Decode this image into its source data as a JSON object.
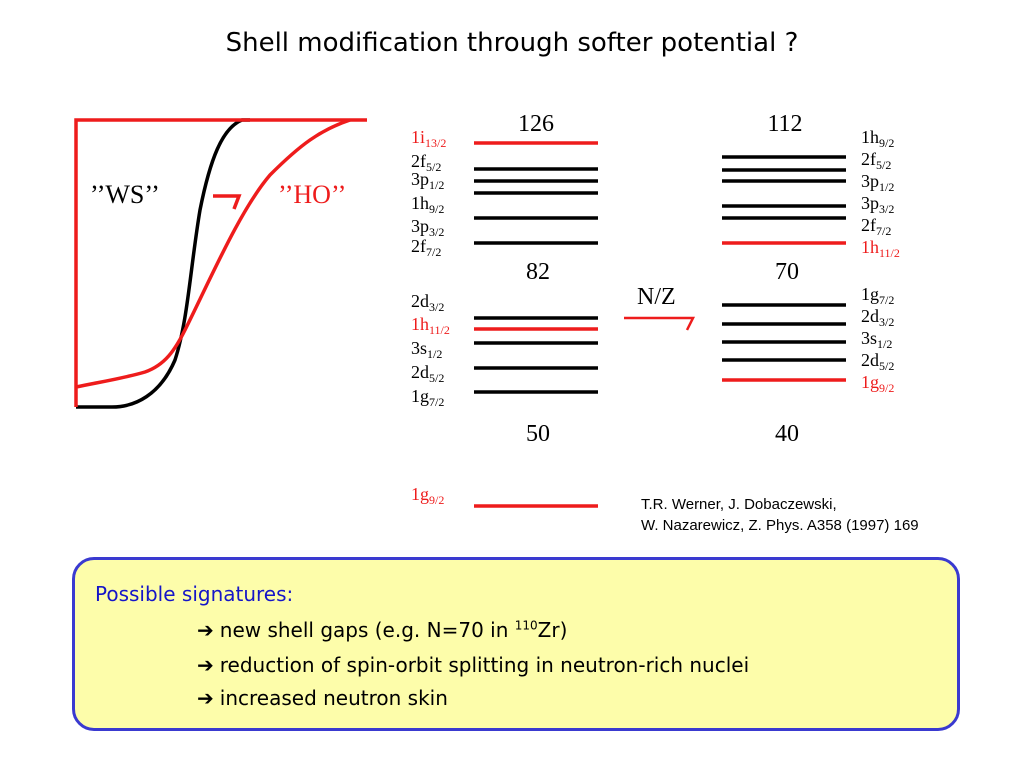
{
  "title": "Shell modification through softer potential ?",
  "potential": {
    "ws_label": "’’WS’’",
    "ho_label": "’’HO’’"
  },
  "left_scheme": {
    "levels": [
      {
        "label": "1i",
        "sub": "13/2",
        "color": "#ee1c1c"
      },
      {
        "label": "2f",
        "sub": "5/2",
        "color": "#000000"
      },
      {
        "label": "3p",
        "sub": "1/2",
        "color": "#000000"
      },
      {
        "label": "1h",
        "sub": "9/2",
        "color": "#000000"
      },
      {
        "label": "3p",
        "sub": "3/2",
        "color": "#000000"
      },
      {
        "label": "2f",
        "sub": "7/2",
        "color": "#000000"
      },
      {
        "label": "2d",
        "sub": "3/2",
        "color": "#000000"
      },
      {
        "label": "1h",
        "sub": "11/2",
        "color": "#ee1c1c"
      },
      {
        "label": "3s",
        "sub": "1/2",
        "color": "#000000"
      },
      {
        "label": "2d",
        "sub": "5/2",
        "color": "#000000"
      },
      {
        "label": "1g",
        "sub": "7/2",
        "color": "#000000"
      },
      {
        "label": "1g",
        "sub": "9/2",
        "color": "#ee1c1c"
      }
    ],
    "magic_numbers": [
      "126",
      "82",
      "50"
    ]
  },
  "right_scheme": {
    "levels": [
      {
        "label": "1h",
        "sub": "9/2",
        "color": "#000000"
      },
      {
        "label": "2f",
        "sub": "5/2",
        "color": "#000000"
      },
      {
        "label": "3p",
        "sub": "1/2",
        "color": "#000000"
      },
      {
        "label": "3p",
        "sub": "3/2",
        "color": "#000000"
      },
      {
        "label": "2f",
        "sub": "7/2",
        "color": "#000000"
      },
      {
        "label": "1h",
        "sub": "11/2",
        "color": "#ee1c1c"
      },
      {
        "label": "1g",
        "sub": "7/2",
        "color": "#000000"
      },
      {
        "label": "2d",
        "sub": "3/2",
        "color": "#000000"
      },
      {
        "label": "3s",
        "sub": "1/2",
        "color": "#000000"
      },
      {
        "label": "2d",
        "sub": "5/2",
        "color": "#000000"
      },
      {
        "label": "1g",
        "sub": "9/2",
        "color": "#ee1c1c"
      }
    ],
    "magic_numbers": [
      "112",
      "70",
      "40"
    ]
  },
  "nz_label": "N/Z",
  "reference": {
    "line1": "T.R. Werner, J. Dobaczewski,",
    "line2": "W. Nazarewicz,  Z. Phys. A358 (1997) 169"
  },
  "signatures": {
    "heading": "Possible signatures:",
    "arrow_glyph": "➔",
    "item1_text": "new shell gaps (e.g. N=70 in ",
    "item1_sup": "110",
    "item1_tail": "Zr)",
    "item2": "reduction of spin-orbit splitting in neutron-rich nuclei",
    "item3": "increased neutron skin"
  },
  "colors": {
    "red": "#ee1c1c",
    "black": "#000000",
    "box_border": "#3a3ad0",
    "box_fill": "#fdfdaa",
    "heading_blue": "#1515c8"
  }
}
